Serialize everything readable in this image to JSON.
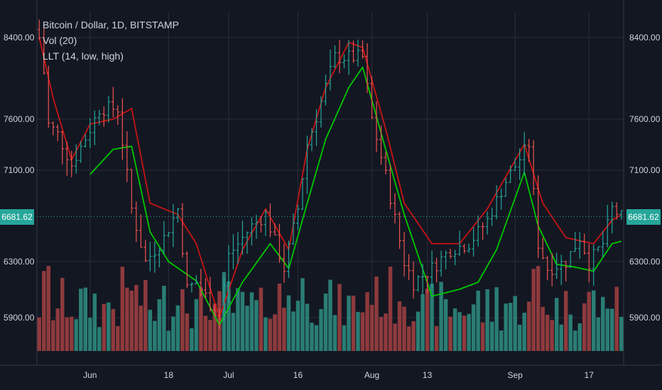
{
  "legend": {
    "symbol": "Bitcoin / Dollar, 1D, BITSTAMP",
    "volume": "Vol (20)",
    "indicator": "LLT (14, low, high)"
  },
  "last_price": "6681.62",
  "colors": {
    "background": "#131722",
    "grid": "#2a2e39",
    "up": "#26a69a",
    "down": "#ef5350",
    "vol_up": "#2a7d74",
    "vol_down": "#8e3a3d",
    "llt_low": "#00c800",
    "llt_high": "#c81414",
    "price_tag": "#26a69a"
  },
  "chart_data": {
    "type": "ohlc",
    "symbol": "Bitcoin / Dollar, 1D, BITSTAMP",
    "y_axis": {
      "ticks": [
        8400,
        7600,
        7100,
        6300,
        5900
      ],
      "tick_labels": [
        "8400.00",
        "7600.00",
        "7100.00",
        "6300.00",
        "5900.00"
      ],
      "scale": "log",
      "range": [
        5700,
        8600
      ]
    },
    "x_axis": {
      "labels": [
        "Jun",
        "18",
        "Jul",
        "16",
        "Aug",
        "13",
        "Sep",
        "17"
      ],
      "label_dates": [
        "2018-06-01",
        "2018-06-18",
        "2018-07-01",
        "2018-07-16",
        "2018-08-01",
        "2018-08-13",
        "2018-09-01",
        "2018-09-17"
      ],
      "range": [
        "2018-05-21",
        "2018-09-24"
      ]
    },
    "closes": [
      {
        "date": "2018-05-21",
        "close": 8400
      },
      {
        "date": "2018-05-22",
        "close": 8050
      },
      {
        "date": "2018-05-23",
        "close": 7550
      },
      {
        "date": "2018-05-25",
        "close": 7450
      },
      {
        "date": "2018-05-28",
        "close": 7150
      },
      {
        "date": "2018-06-01",
        "close": 7500
      },
      {
        "date": "2018-06-03",
        "close": 7700
      },
      {
        "date": "2018-06-07",
        "close": 7700
      },
      {
        "date": "2018-06-10",
        "close": 6750
      },
      {
        "date": "2018-06-13",
        "close": 6300
      },
      {
        "date": "2018-06-17",
        "close": 6500
      },
      {
        "date": "2018-06-20",
        "close": 6750
      },
      {
        "date": "2018-06-22",
        "close": 6100
      },
      {
        "date": "2018-06-24",
        "close": 6150
      },
      {
        "date": "2018-06-29",
        "close": 5900
      },
      {
        "date": "2018-07-01",
        "close": 6350
      },
      {
        "date": "2018-07-06",
        "close": 6600
      },
      {
        "date": "2018-07-09",
        "close": 6700
      },
      {
        "date": "2018-07-13",
        "close": 6250
      },
      {
        "date": "2018-07-16",
        "close": 6750
      },
      {
        "date": "2018-07-18",
        "close": 7350
      },
      {
        "date": "2018-07-24",
        "close": 8200
      },
      {
        "date": "2018-07-27",
        "close": 8200
      },
      {
        "date": "2018-07-30",
        "close": 8200
      },
      {
        "date": "2018-08-01",
        "close": 7600
      },
      {
        "date": "2018-08-04",
        "close": 7050
      },
      {
        "date": "2018-08-08",
        "close": 6300
      },
      {
        "date": "2018-08-10",
        "close": 6150
      },
      {
        "date": "2018-08-14",
        "close": 6250
      },
      {
        "date": "2018-08-18",
        "close": 6400
      },
      {
        "date": "2018-08-22",
        "close": 6450
      },
      {
        "date": "2018-08-26",
        "close": 6650
      },
      {
        "date": "2018-08-30",
        "close": 7000
      },
      {
        "date": "2018-09-04",
        "close": 7350
      },
      {
        "date": "2018-09-06",
        "close": 6450
      },
      {
        "date": "2018-09-08",
        "close": 6250
      },
      {
        "date": "2018-09-12",
        "close": 6300
      },
      {
        "date": "2018-09-15",
        "close": 6500
      },
      {
        "date": "2018-09-17",
        "close": 6300
      },
      {
        "date": "2018-09-20",
        "close": 6450
      },
      {
        "date": "2018-09-22",
        "close": 6750
      },
      {
        "date": "2018-09-24",
        "close": 6681.62
      }
    ],
    "series": [
      {
        "role": "volume",
        "sub_type": "bar",
        "colors": "follows candle direction"
      },
      {
        "role": "llt_low",
        "sub_type": "line",
        "points": [
          {
            "date": "2018-06-01",
            "value": 7060
          },
          {
            "date": "2018-06-06",
            "value": 7300
          },
          {
            "date": "2018-06-10",
            "value": 7330
          },
          {
            "date": "2018-06-14",
            "value": 6550
          },
          {
            "date": "2018-06-18",
            "value": 6300
          },
          {
            "date": "2018-06-24",
            "value": 6160
          },
          {
            "date": "2018-06-29",
            "value": 5850
          },
          {
            "date": "2018-07-04",
            "value": 6150
          },
          {
            "date": "2018-07-10",
            "value": 6450
          },
          {
            "date": "2018-07-14",
            "value": 6250
          },
          {
            "date": "2018-07-18",
            "value": 6800
          },
          {
            "date": "2018-07-22",
            "value": 7400
          },
          {
            "date": "2018-07-27",
            "value": 7900
          },
          {
            "date": "2018-07-30",
            "value": 8100
          },
          {
            "date": "2018-08-04",
            "value": 7300
          },
          {
            "date": "2018-08-08",
            "value": 6700
          },
          {
            "date": "2018-08-14",
            "value": 6050
          },
          {
            "date": "2018-08-20",
            "value": 6100
          },
          {
            "date": "2018-08-24",
            "value": 6150
          },
          {
            "date": "2018-08-28",
            "value": 6400
          },
          {
            "date": "2018-09-03",
            "value": 7080
          },
          {
            "date": "2018-09-06",
            "value": 6600
          },
          {
            "date": "2018-09-10",
            "value": 6280
          },
          {
            "date": "2018-09-14",
            "value": 6260
          },
          {
            "date": "2018-09-18",
            "value": 6230
          },
          {
            "date": "2018-09-22",
            "value": 6450
          },
          {
            "date": "2018-09-24",
            "value": 6470
          }
        ]
      },
      {
        "role": "llt_high",
        "sub_type": "line",
        "points": [
          {
            "date": "2018-05-21",
            "value": 8400
          },
          {
            "date": "2018-05-24",
            "value": 7800
          },
          {
            "date": "2018-05-28",
            "value": 7200
          },
          {
            "date": "2018-06-01",
            "value": 7550
          },
          {
            "date": "2018-06-06",
            "value": 7600
          },
          {
            "date": "2018-06-10",
            "value": 7700
          },
          {
            "date": "2018-06-14",
            "value": 6800
          },
          {
            "date": "2018-06-20",
            "value": 6700
          },
          {
            "date": "2018-06-24",
            "value": 6450
          },
          {
            "date": "2018-06-29",
            "value": 5900
          },
          {
            "date": "2018-07-04",
            "value": 6400
          },
          {
            "date": "2018-07-09",
            "value": 6750
          },
          {
            "date": "2018-07-14",
            "value": 6400
          },
          {
            "date": "2018-07-18",
            "value": 7300
          },
          {
            "date": "2018-07-22",
            "value": 7900
          },
          {
            "date": "2018-07-27",
            "value": 8350
          },
          {
            "date": "2018-07-30",
            "value": 8300
          },
          {
            "date": "2018-08-04",
            "value": 7500
          },
          {
            "date": "2018-08-08",
            "value": 6800
          },
          {
            "date": "2018-08-14",
            "value": 6450
          },
          {
            "date": "2018-08-20",
            "value": 6450
          },
          {
            "date": "2018-08-26",
            "value": 6750
          },
          {
            "date": "2018-09-03",
            "value": 7350
          },
          {
            "date": "2018-09-07",
            "value": 6800
          },
          {
            "date": "2018-09-12",
            "value": 6500
          },
          {
            "date": "2018-09-18",
            "value": 6450
          },
          {
            "date": "2018-09-22",
            "value": 6650
          },
          {
            "date": "2018-09-24",
            "value": 6700
          }
        ]
      }
    ],
    "annotations": [
      {
        "kind": "last_price_label",
        "value": 6681.62,
        "text": "6681.62",
        "color": "#26a69a"
      }
    ],
    "grid": true,
    "legend_position": "top-left"
  }
}
